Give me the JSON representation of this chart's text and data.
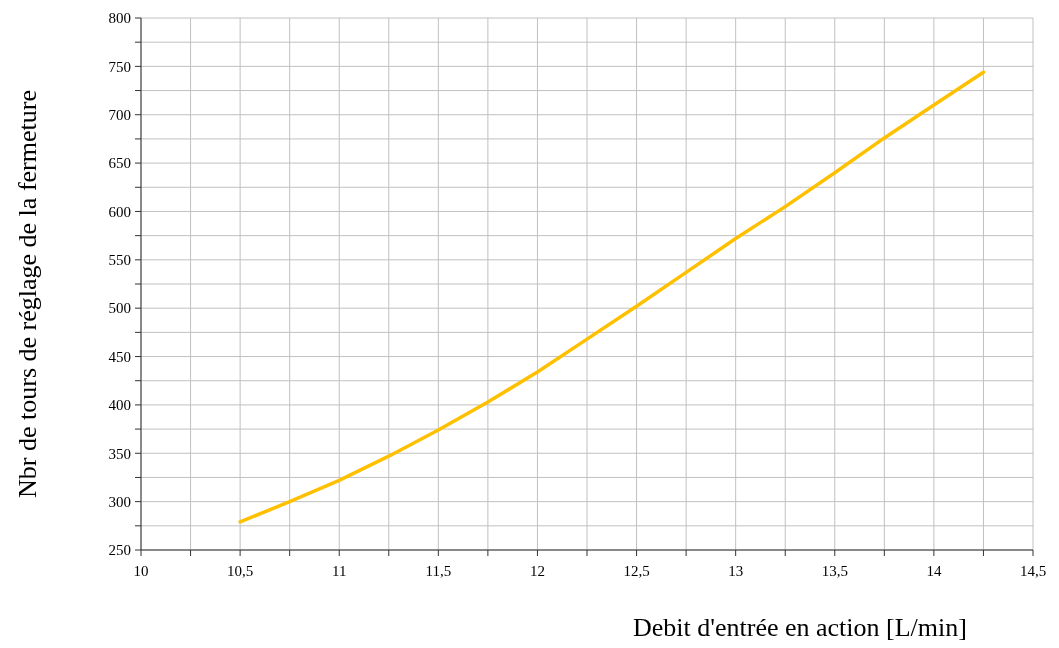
{
  "chart_data": {
    "type": "line",
    "xlabel": "Debit d'entrée en action [L/min]",
    "ylabel": "Nbr de tours de réglage de la fermeture",
    "x": [
      10.5,
      10.75,
      11,
      11.25,
      11.5,
      11.75,
      12,
      12.25,
      12.5,
      12.75,
      13,
      13.25,
      13.5,
      13.75,
      14,
      14.25
    ],
    "series": [
      {
        "color": "#ffc000",
        "values": [
          279,
          300,
          322,
          347,
          374,
          403,
          434,
          468,
          502,
          537,
          572,
          605,
          640,
          676,
          710,
          744
        ]
      }
    ],
    "xlim": [
      10,
      14.5
    ],
    "xticks": [
      {
        "value": 10,
        "label": "10"
      },
      {
        "value": 10.25,
        "label": null
      },
      {
        "value": 10.5,
        "label": "10,5"
      },
      {
        "value": 10.75,
        "label": null
      },
      {
        "value": 11,
        "label": "11"
      },
      {
        "value": 11.25,
        "label": null
      },
      {
        "value": 11.5,
        "label": "11,5"
      },
      {
        "value": 11.75,
        "label": null
      },
      {
        "value": 12,
        "label": "12"
      },
      {
        "value": 12.25,
        "label": null
      },
      {
        "value": 12.5,
        "label": "12,5"
      },
      {
        "value": 12.75,
        "label": null
      },
      {
        "value": 13,
        "label": "13"
      },
      {
        "value": 13.25,
        "label": null
      },
      {
        "value": 13.5,
        "label": "13,5"
      },
      {
        "value": 13.75,
        "label": null
      },
      {
        "value": 14,
        "label": "14"
      },
      {
        "value": 14.25,
        "label": null
      },
      {
        "value": 14.5,
        "label": "14,5"
      }
    ],
    "ylim": [
      250,
      800
    ],
    "yticks": [
      250,
      {
        "value": 275,
        "label": null
      },
      300,
      {
        "value": 325,
        "label": null
      },
      350,
      {
        "value": 375,
        "label": null
      },
      400,
      {
        "value": 425,
        "label": null
      },
      450,
      {
        "value": 475,
        "label": null
      },
      500,
      {
        "value": 525,
        "label": null
      },
      550,
      {
        "value": 575,
        "label": null
      },
      600,
      {
        "value": 625,
        "label": null
      },
      650,
      {
        "value": 675,
        "label": null
      },
      700,
      {
        "value": 725,
        "label": null
      },
      750,
      {
        "value": 775,
        "label": null
      },
      800
    ],
    "grid": true,
    "marker": "none",
    "line_style": "solid"
  }
}
